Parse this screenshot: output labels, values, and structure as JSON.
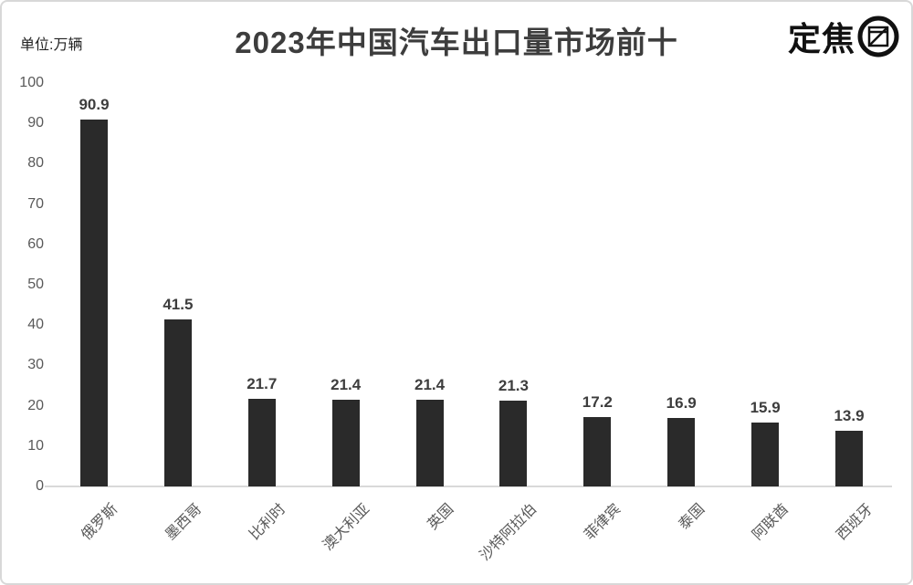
{
  "header": {
    "unit_label": "单位:万辆",
    "title": "2023年中国汽车出口量市场前十",
    "logo_text": "定焦",
    "logo_icon": "focus-viewfinder-icon"
  },
  "chart_data": {
    "type": "bar",
    "title": "2023年中国汽车出口量市场前十",
    "unit_note": "单位:万辆",
    "categories": [
      "俄罗斯",
      "墨西哥",
      "比利时",
      "澳大利亚",
      "英国",
      "沙特阿拉伯",
      "菲律宾",
      "泰国",
      "阿联酋",
      "西班牙"
    ],
    "values": [
      90.9,
      41.5,
      21.7,
      21.4,
      21.4,
      21.3,
      17.2,
      16.9,
      15.9,
      13.9
    ],
    "value_labels": [
      "90.9",
      "41.5",
      "21.7",
      "21.4",
      "21.4",
      "21.3",
      "17.2",
      "16.9",
      "15.9",
      "13.9"
    ],
    "xlabel": "",
    "ylabel": "",
    "ylim": [
      0,
      100
    ],
    "yticks": [
      0,
      10,
      20,
      30,
      40,
      50,
      60,
      70,
      80,
      90,
      100
    ],
    "grid": false,
    "legend": false,
    "bar_color": "#2a2a2a",
    "axis_line_color": "#d9d9d9",
    "tick_label_color": "#595959",
    "value_label_color": "#3d3d3d"
  }
}
